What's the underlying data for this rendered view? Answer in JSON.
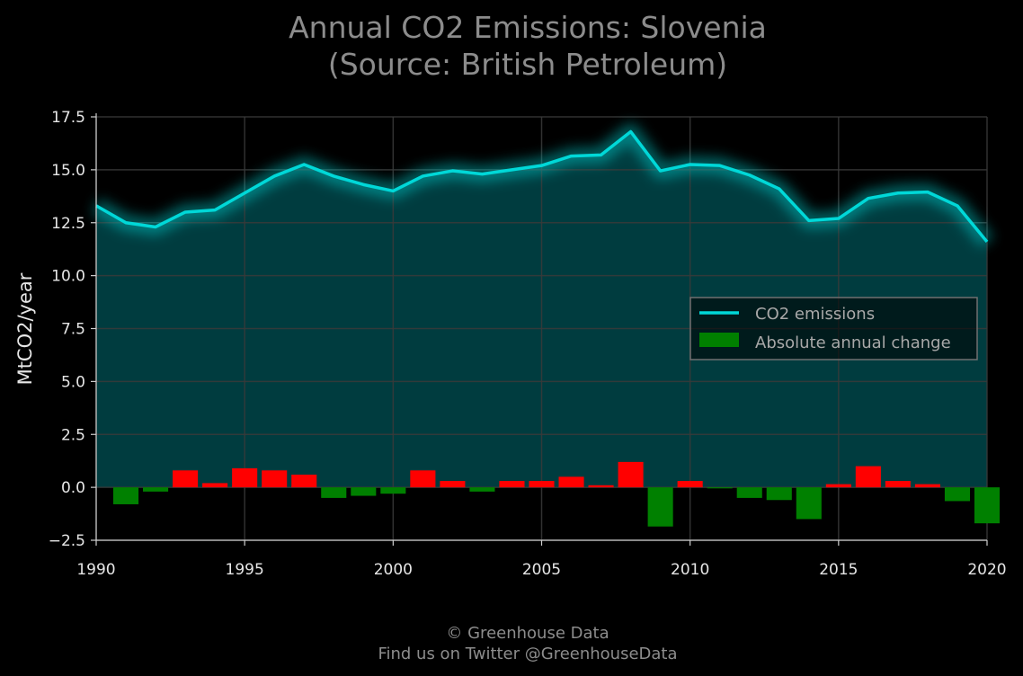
{
  "chart_data": {
    "type": "line",
    "title_lines": [
      "Annual CO2 Emissions: Slovenia",
      "(Source: British Petroleum)"
    ],
    "ylabel": "MtCO2/year",
    "xlabel": "",
    "xlim": [
      1990,
      2020
    ],
    "ylim": [
      -2.5,
      17.5
    ],
    "x_ticks": [
      "1990",
      "1995",
      "2000",
      "2005",
      "2010",
      "2015",
      "2020"
    ],
    "y_ticks": [
      "−2.5",
      "0.0",
      "2.5",
      "5.0",
      "7.5",
      "10.0",
      "12.5",
      "15.0",
      "17.5"
    ],
    "grid": true,
    "legend_position": "center-right",
    "x": [
      1990,
      1991,
      1992,
      1993,
      1994,
      1995,
      1996,
      1997,
      1998,
      1999,
      2000,
      2001,
      2002,
      2003,
      2004,
      2005,
      2006,
      2007,
      2008,
      2009,
      2010,
      2011,
      2012,
      2013,
      2014,
      2015,
      2016,
      2017,
      2018,
      2019,
      2020
    ],
    "series": [
      {
        "name": "CO2 emissions",
        "kind": "line",
        "color": "#00d8d8",
        "values": [
          13.3,
          12.5,
          12.3,
          13.0,
          13.1,
          13.9,
          14.7,
          15.25,
          14.7,
          14.3,
          14.0,
          14.7,
          14.95,
          14.8,
          15.0,
          15.2,
          15.65,
          15.7,
          16.8,
          14.95,
          15.25,
          15.2,
          14.75,
          14.1,
          12.6,
          12.7,
          13.65,
          13.9,
          13.95,
          13.3,
          11.6
        ]
      },
      {
        "name": "Absolute annual change",
        "kind": "bar",
        "color_positive": "#ff0000",
        "color_negative": "#008000",
        "values": [
          null,
          -0.8,
          -0.2,
          0.8,
          0.2,
          0.9,
          0.8,
          0.6,
          -0.5,
          -0.4,
          -0.3,
          0.8,
          0.3,
          -0.2,
          0.3,
          0.3,
          0.5,
          0.1,
          1.2,
          -1.85,
          0.3,
          -0.05,
          -0.5,
          -0.6,
          -1.5,
          0.15,
          1.0,
          0.3,
          0.15,
          -0.65,
          -1.7
        ]
      }
    ]
  },
  "footer": {
    "line1": "© Greenhouse Data",
    "line2": "Find us on Twitter @GreenhouseData"
  },
  "colors": {
    "background": "#000000",
    "area_fill": "#003c3f",
    "grid": "#2f4f4f",
    "text": "#e6e6e6",
    "title": "#8c8c8c"
  }
}
